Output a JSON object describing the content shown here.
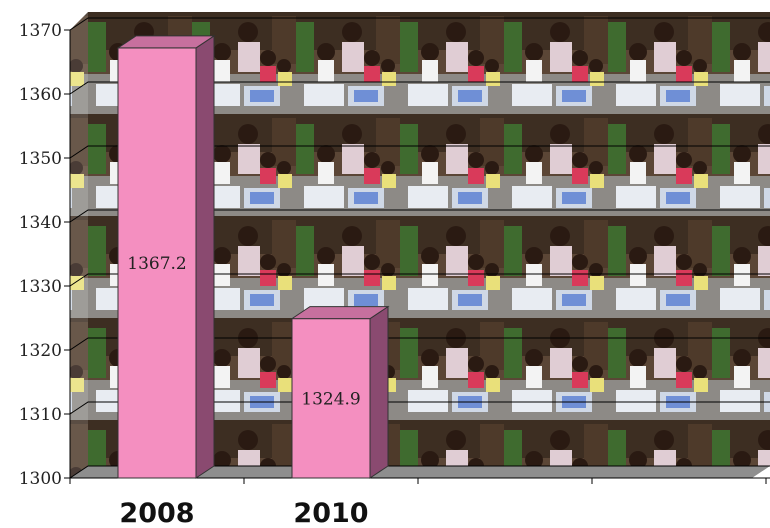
{
  "chart_data": {
    "type": "bar",
    "categories": [
      "2008",
      "2010"
    ],
    "values": [
      1367.2,
      1324.9
    ],
    "data_labels": [
      "1367.2",
      "1324.9"
    ],
    "ylim": [
      1300,
      1370
    ],
    "y_ticks": [
      "1300",
      "1310",
      "1320",
      "1330",
      "1340",
      "1350",
      "1360",
      "1370"
    ],
    "title": "",
    "xlabel": "",
    "ylabel": "",
    "grid": true,
    "style": "3d-bar",
    "bar_color": "#f48fc0",
    "bar_side_color": "#8a4a70",
    "bar_top_color": "#c7709e",
    "background": "photo-tiled"
  }
}
